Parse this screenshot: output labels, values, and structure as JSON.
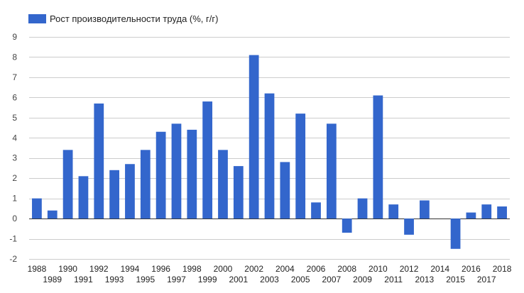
{
  "chart_data": {
    "type": "bar",
    "title": "",
    "xlabel": "",
    "ylabel": "",
    "legend": {
      "position": "top-left",
      "entries": [
        "Рост производительности труда (%, г/г)"
      ]
    },
    "grid": true,
    "ylim": [
      -2,
      9
    ],
    "yticks": [
      -2,
      -1,
      0,
      1,
      2,
      3,
      4,
      5,
      6,
      7,
      8,
      9
    ],
    "categories": [
      "1988",
      "1989",
      "1990",
      "1991",
      "1992",
      "1993",
      "1994",
      "1995",
      "1996",
      "1997",
      "1998",
      "1999",
      "2000",
      "2001",
      "2002",
      "2003",
      "2004",
      "2005",
      "2006",
      "2007",
      "2008",
      "2009",
      "2010",
      "2011",
      "2012",
      "2013",
      "2014",
      "2015",
      "2016",
      "2017",
      "2018"
    ],
    "series": [
      {
        "name": "Рост производительности труда (%, г/г)",
        "color": "#3366cc",
        "values": [
          1.0,
          0.4,
          3.4,
          2.1,
          5.7,
          2.4,
          2.7,
          3.4,
          4.3,
          4.7,
          4.4,
          5.8,
          3.4,
          2.6,
          8.1,
          6.2,
          2.8,
          5.2,
          0.8,
          4.7,
          -0.7,
          1.0,
          6.1,
          0.7,
          -0.8,
          0.9,
          0.0,
          -1.5,
          0.3,
          0.7,
          0.6
        ]
      }
    ]
  }
}
